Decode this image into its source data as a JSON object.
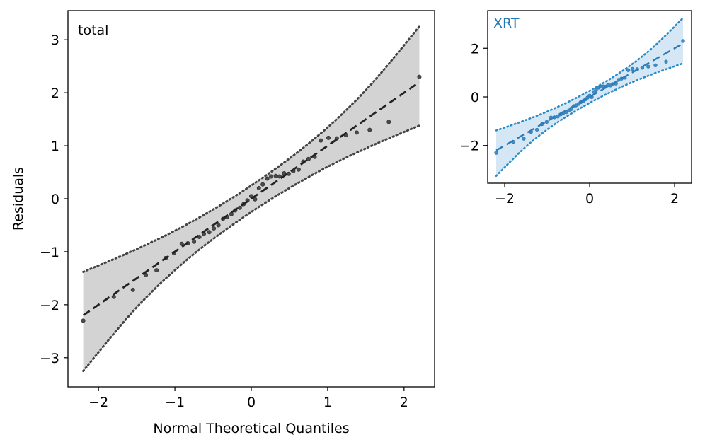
{
  "chart_data": [
    {
      "type": "scatter",
      "subtype": "qq-plot",
      "panel_label": "total",
      "xlabel": "Normal Theoretical Quantiles",
      "ylabel": "Residuals",
      "xlim": [
        -2.4,
        2.4
      ],
      "ylim": [
        -3.55,
        3.55
      ],
      "x_ticks": [
        -2,
        -1,
        0,
        1,
        2
      ],
      "y_ticks": [
        -3,
        -2,
        -1,
        0,
        1,
        2,
        3
      ],
      "grid": false,
      "colors": {
        "points": "#333333",
        "fit_line": "#222222",
        "band_fill": "#d3d3d3",
        "band_edge": "#444444"
      },
      "series": [
        {
          "name": "",
          "kind": "points",
          "x": [
            -2.2,
            -1.8,
            -1.55,
            -1.38,
            -1.24,
            -1.12,
            -1.01,
            -0.91,
            -0.83,
            -0.75,
            -0.68,
            -0.62,
            -0.55,
            -0.49,
            -0.43,
            -0.37,
            -0.32,
            -0.26,
            -0.21,
            -0.15,
            -0.1,
            -0.05,
            0.0,
            0.05,
            0.1,
            0.15,
            0.21,
            0.26,
            0.32,
            0.37,
            0.43,
            0.49,
            0.55,
            0.62,
            0.68,
            0.75,
            0.83,
            0.91,
            1.01,
            1.12,
            1.24,
            1.38,
            1.55,
            1.8,
            2.2
          ],
          "y": [
            -2.3,
            -1.85,
            -1.72,
            -1.44,
            -1.35,
            -1.12,
            -1.03,
            -0.85,
            -0.84,
            -0.81,
            -0.72,
            -0.66,
            -0.63,
            -0.56,
            -0.5,
            -0.38,
            -0.35,
            -0.29,
            -0.22,
            -0.17,
            -0.1,
            -0.03,
            0.05,
            -0.01,
            0.2,
            0.27,
            0.38,
            0.42,
            0.43,
            0.42,
            0.48,
            0.47,
            0.52,
            0.55,
            0.7,
            0.75,
            0.79,
            1.1,
            1.15,
            1.14,
            1.2,
            1.25,
            1.3,
            1.45,
            2.3
          ]
        },
        {
          "name": "",
          "kind": "fit-line",
          "x": [
            -2.2,
            2.2
          ],
          "y": [
            -2.2,
            2.2
          ]
        },
        {
          "name": "",
          "kind": "band",
          "x": [
            -2.2,
            -1.5,
            -0.8,
            0,
            0.8,
            1.5,
            2.2
          ],
          "lower": [
            -3.25,
            -2.05,
            -1.1,
            -0.25,
            0.45,
            0.95,
            1.38
          ],
          "upper": [
            -1.38,
            -0.95,
            -0.45,
            0.25,
            1.1,
            2.05,
            3.25
          ]
        }
      ]
    },
    {
      "type": "scatter",
      "subtype": "qq-plot",
      "panel_label": "XRT",
      "xlabel": "",
      "ylabel": "",
      "xlim": [
        -2.4,
        2.4
      ],
      "ylim": [
        -3.55,
        3.55
      ],
      "x_ticks": [
        -2,
        0,
        2
      ],
      "y_ticks": [
        -2,
        0,
        2
      ],
      "grid": false,
      "colors": {
        "points": "#2b7bb9",
        "fit_line": "#2b7bb9",
        "band_fill": "#d5e7f4",
        "band_edge": "#2b8ac8",
        "label": "#1f77b4"
      },
      "series": [
        {
          "name": "",
          "kind": "points",
          "x": [
            -2.2,
            -1.8,
            -1.55,
            -1.38,
            -1.24,
            -1.12,
            -1.01,
            -0.91,
            -0.83,
            -0.75,
            -0.68,
            -0.62,
            -0.55,
            -0.49,
            -0.43,
            -0.37,
            -0.32,
            -0.26,
            -0.21,
            -0.15,
            -0.1,
            -0.05,
            0.0,
            0.05,
            0.1,
            0.15,
            0.21,
            0.26,
            0.32,
            0.37,
            0.43,
            0.49,
            0.55,
            0.62,
            0.68,
            0.75,
            0.83,
            0.91,
            1.01,
            1.12,
            1.24,
            1.38,
            1.55,
            1.8,
            2.2
          ],
          "y": [
            -2.3,
            -1.85,
            -1.72,
            -1.44,
            -1.35,
            -1.12,
            -1.03,
            -0.85,
            -0.84,
            -0.81,
            -0.72,
            -0.66,
            -0.63,
            -0.56,
            -0.5,
            -0.38,
            -0.35,
            -0.29,
            -0.22,
            -0.17,
            -0.1,
            -0.03,
            0.05,
            -0.01,
            0.2,
            0.27,
            0.38,
            0.42,
            0.43,
            0.42,
            0.48,
            0.47,
            0.52,
            0.55,
            0.7,
            0.75,
            0.79,
            1.1,
            1.15,
            1.14,
            1.2,
            1.25,
            1.3,
            1.45,
            2.3
          ]
        },
        {
          "name": "",
          "kind": "fit-line",
          "x": [
            -2.2,
            2.2
          ],
          "y": [
            -2.2,
            2.2
          ]
        },
        {
          "name": "",
          "kind": "band",
          "x": [
            -2.2,
            -1.5,
            -0.8,
            0,
            0.8,
            1.5,
            2.2
          ],
          "lower": [
            -3.25,
            -2.05,
            -1.1,
            -0.25,
            0.45,
            0.95,
            1.38
          ],
          "upper": [
            -1.38,
            -0.95,
            -0.45,
            0.25,
            1.1,
            2.05,
            3.25
          ]
        }
      ]
    }
  ]
}
